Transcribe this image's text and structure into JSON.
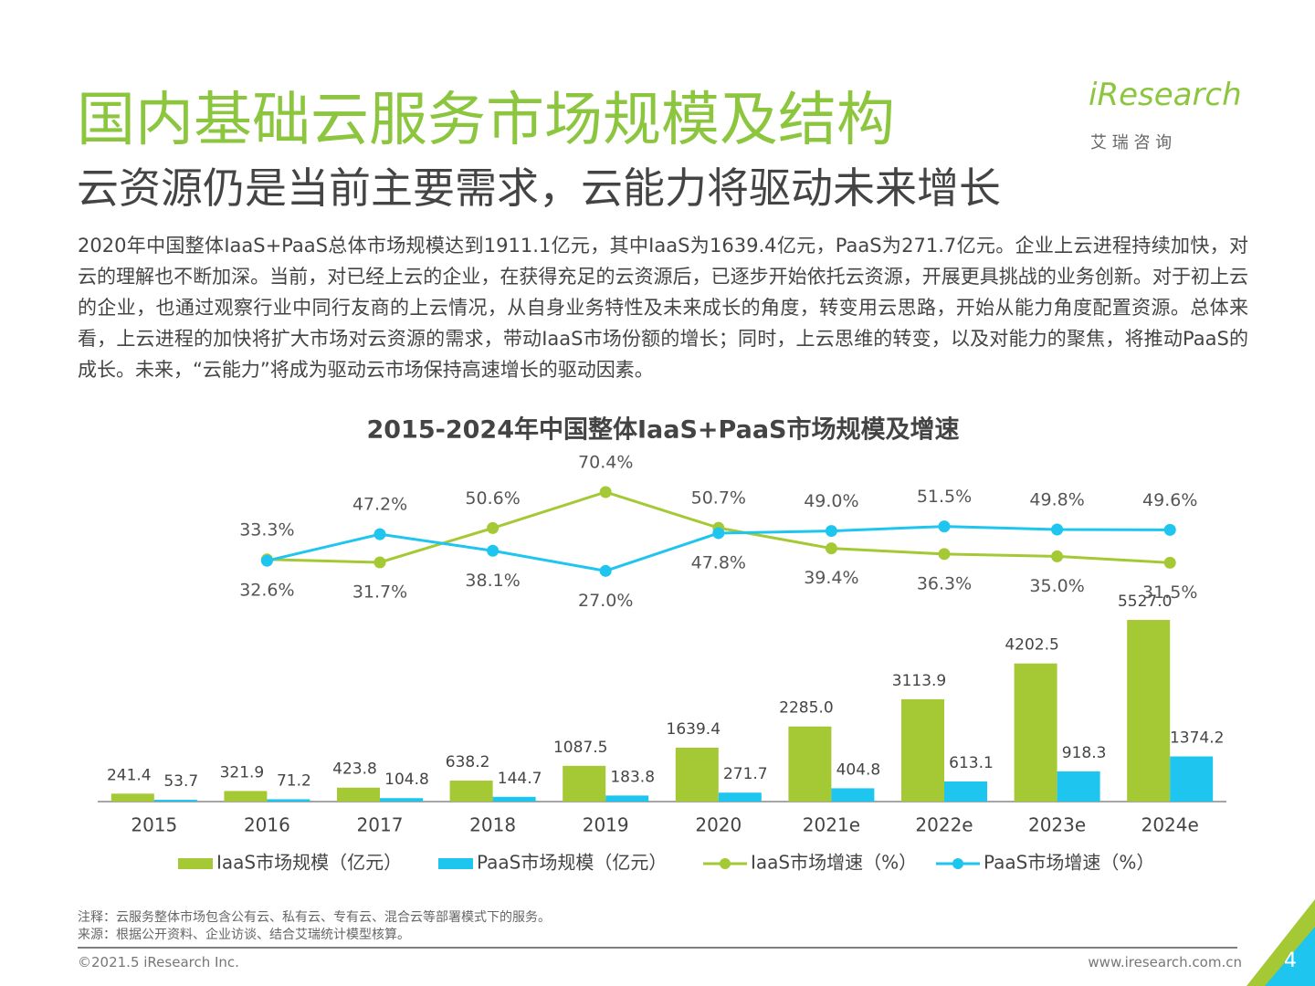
{
  "header": {
    "title": "国内基础云服务市场规模及结构",
    "subtitle": "云资源仍是当前主要需求，云能力将驱动未来增长",
    "logo": "iResearch",
    "logo_sub": "艾 瑞 咨 询"
  },
  "body": "2020年中国整体IaaS+PaaS总体市场规模达到1911.1亿元，其中IaaS为1639.4亿元，PaaS为271.7亿元。企业上云进程持续加快，对云的理解也不断加深。当前，对已经上云的企业，在获得充足的云资源后，已逐步开始依托云资源，开展更具挑战的业务创新。对于初上云的企业，也通过观察行业中同行友商的上云情况，从自身业务特性及未来成长的角度，转变用云思路，开始从能力角度配置资源。总体来看，上云进程的加快将扩大市场对云资源的需求，带动IaaS市场份额的增长；同时，上云思维的转变，以及对能力的聚焦，将推动PaaS的成长。未来，“云能力”将成为驱动云市场保持高速增长的驱动因素。",
  "chart_data": {
    "type": "bar",
    "title": "2015-2024年中国整体IaaS+PaaS市场规模及增速",
    "categories": [
      "2015",
      "2016",
      "2017",
      "2018",
      "2019",
      "2020",
      "2021e",
      "2022e",
      "2023e",
      "2024e"
    ],
    "ylim": [
      0,
      10500
    ],
    "y2lim": [
      -100,
      90
    ],
    "series": [
      {
        "name": "IaaS市场规模（亿元）",
        "type": "bar",
        "color": "#a5c935",
        "values": [
          241.4,
          321.9,
          423.8,
          638.2,
          1087.5,
          1639.4,
          2285.0,
          3113.9,
          4202.5,
          5527.0
        ],
        "value_labels": [
          "241.4",
          "321.9",
          "423.8",
          "638.2",
          "1087.5",
          "1639.4",
          "2285.0",
          "3113.9",
          "4202.5",
          "5527.0"
        ]
      },
      {
        "name": "PaaS市场规模（亿元）",
        "type": "bar",
        "color": "#1ec5ee",
        "values": [
          53.7,
          71.2,
          104.8,
          144.7,
          183.8,
          271.7,
          404.8,
          613.1,
          918.3,
          1374.2
        ],
        "value_labels": [
          "53.7",
          "71.2",
          "104.8",
          "144.7",
          "183.8",
          "271.7",
          "404.8",
          "613.1",
          "918.3",
          "1374.2"
        ]
      },
      {
        "name": "IaaS市场增速（%）",
        "type": "line",
        "axis": "y2",
        "color": "#a5c935",
        "values": [
          null,
          33.3,
          31.7,
          50.6,
          70.4,
          50.7,
          39.4,
          36.3,
          35.0,
          31.5
        ],
        "value_labels": [
          null,
          "33.3%",
          "31.7%",
          "50.6%",
          "70.4%",
          "50.7%",
          "39.4%",
          "36.3%",
          "35.0%",
          "31.5%"
        ]
      },
      {
        "name": "PaaS市场增速（%）",
        "type": "line",
        "axis": "y2",
        "color": "#1ec5ee",
        "values": [
          null,
          32.6,
          47.2,
          38.1,
          27.0,
          47.8,
          49.0,
          51.5,
          49.8,
          49.6
        ],
        "value_labels": [
          null,
          "32.6%",
          "47.2%",
          "38.1%",
          "27.0%",
          "47.8%",
          "49.0%",
          "51.5%",
          "49.8%",
          "49.6%"
        ]
      }
    ]
  },
  "notes": [
    "注释：云服务整体市场包含公有云、私有云、专有云、混合云等部署模式下的服务。",
    "来源：根据公开资料、企业访谈、结合艾瑞统计模型核算。"
  ],
  "footer": {
    "copyright": "©2021.5 iResearch Inc.",
    "url": "www.iresearch.com.cn",
    "page": "4"
  }
}
